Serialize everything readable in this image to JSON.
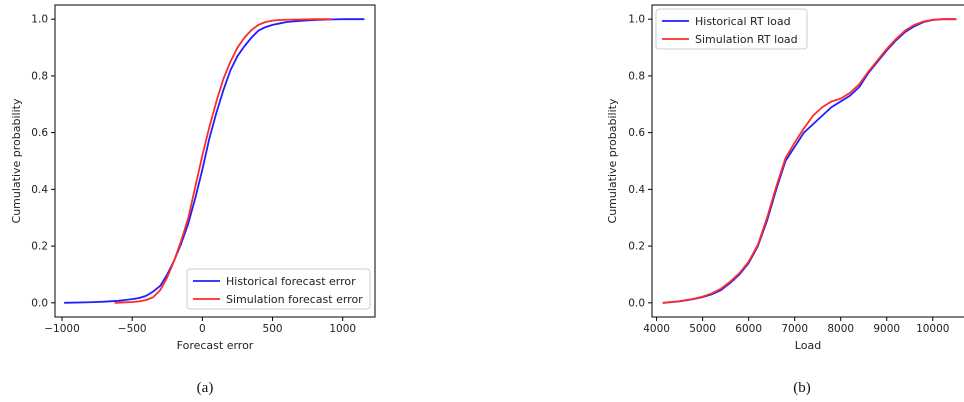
{
  "chart_data": [
    {
      "type": "line",
      "caption": "(a)",
      "xlabel": "Forecast error",
      "ylabel": "Cumulative probability",
      "xlim": [
        -1050,
        1230
      ],
      "ylim": [
        -0.05,
        1.05
      ],
      "xticks": [
        -1000,
        -500,
        0,
        500,
        1000
      ],
      "xtick_labels": [
        "−1000",
        "−500",
        "0",
        "500",
        "1000"
      ],
      "yticks": [
        0.0,
        0.2,
        0.4,
        0.6,
        0.8,
        1.0
      ],
      "ytick_labels": [
        "0.0",
        "0.2",
        "0.4",
        "0.6",
        "0.8",
        "1.0"
      ],
      "grid": false,
      "legend_position": "lower-right",
      "series": [
        {
          "name": "Historical forecast error",
          "color": "#1f1fff",
          "x": [
            -980,
            -800,
            -700,
            -600,
            -550,
            -500,
            -450,
            -400,
            -350,
            -300,
            -250,
            -200,
            -150,
            -100,
            -50,
            0,
            50,
            100,
            150,
            200,
            250,
            300,
            350,
            400,
            450,
            500,
            550,
            600,
            700,
            800,
            900,
            1000,
            1150
          ],
          "y": [
            0.0,
            0.002,
            0.004,
            0.007,
            0.01,
            0.013,
            0.017,
            0.025,
            0.04,
            0.06,
            0.1,
            0.15,
            0.21,
            0.28,
            0.37,
            0.47,
            0.58,
            0.67,
            0.75,
            0.82,
            0.87,
            0.905,
            0.935,
            0.96,
            0.972,
            0.98,
            0.985,
            0.99,
            0.994,
            0.997,
            0.999,
            1.0,
            1.0
          ]
        },
        {
          "name": "Simulation forecast error",
          "color": "#ff2a2a",
          "x": [
            -620,
            -500,
            -450,
            -400,
            -350,
            -300,
            -250,
            -200,
            -150,
            -100,
            -50,
            0,
            50,
            100,
            150,
            200,
            250,
            300,
            350,
            400,
            450,
            500,
            550,
            600,
            700,
            800,
            920
          ],
          "y": [
            0.0,
            0.003,
            0.005,
            0.01,
            0.02,
            0.045,
            0.09,
            0.15,
            0.22,
            0.3,
            0.41,
            0.52,
            0.62,
            0.71,
            0.79,
            0.85,
            0.9,
            0.935,
            0.962,
            0.98,
            0.99,
            0.995,
            0.997,
            0.998,
            0.999,
            1.0,
            1.0
          ]
        }
      ]
    },
    {
      "type": "line",
      "caption": "(b)",
      "xlabel": "Load",
      "ylabel": "Cumulative probability",
      "xlim": [
        3900,
        10700
      ],
      "ylim": [
        -0.05,
        1.05
      ],
      "xticks": [
        4000,
        5000,
        6000,
        7000,
        8000,
        9000,
        10000
      ],
      "xtick_labels": [
        "4000",
        "5000",
        "6000",
        "7000",
        "8000",
        "9000",
        "10000"
      ],
      "yticks": [
        0.0,
        0.2,
        0.4,
        0.6,
        0.8,
        1.0
      ],
      "ytick_labels": [
        "0.0",
        "0.2",
        "0.4",
        "0.6",
        "0.8",
        "1.0"
      ],
      "grid": false,
      "legend_position": "upper-left",
      "series": [
        {
          "name": "Historical RT load",
          "color": "#1f1fff",
          "x": [
            4150,
            4500,
            4800,
            5000,
            5200,
            5400,
            5600,
            5800,
            6000,
            6200,
            6400,
            6600,
            6800,
            7000,
            7200,
            7400,
            7600,
            7800,
            8000,
            8200,
            8400,
            8600,
            8800,
            9000,
            9200,
            9400,
            9600,
            9800,
            10000,
            10200,
            10500
          ],
          "y": [
            0.0,
            0.005,
            0.013,
            0.02,
            0.03,
            0.045,
            0.07,
            0.1,
            0.14,
            0.2,
            0.29,
            0.4,
            0.5,
            0.55,
            0.6,
            0.63,
            0.66,
            0.69,
            0.71,
            0.73,
            0.76,
            0.81,
            0.85,
            0.89,
            0.925,
            0.955,
            0.975,
            0.99,
            0.997,
            1.0,
            1.0
          ]
        },
        {
          "name": "Simulation RT load",
          "color": "#ff2a2a",
          "x": [
            4150,
            4500,
            4800,
            5000,
            5200,
            5400,
            5600,
            5800,
            6000,
            6200,
            6400,
            6600,
            6800,
            7000,
            7200,
            7400,
            7600,
            7800,
            8000,
            8200,
            8400,
            8600,
            8800,
            9000,
            9200,
            9400,
            9600,
            9800,
            10000,
            10200,
            10500
          ],
          "y": [
            0.0,
            0.006,
            0.014,
            0.022,
            0.033,
            0.05,
            0.075,
            0.105,
            0.145,
            0.205,
            0.3,
            0.41,
            0.51,
            0.565,
            0.615,
            0.66,
            0.69,
            0.71,
            0.72,
            0.74,
            0.77,
            0.815,
            0.855,
            0.895,
            0.93,
            0.96,
            0.98,
            0.992,
            0.998,
            1.0,
            1.0
          ]
        }
      ]
    }
  ]
}
